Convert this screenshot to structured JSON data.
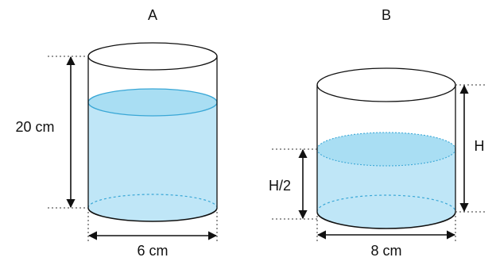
{
  "colors": {
    "water": "#bfe6f7",
    "water_surface": "#a9def3",
    "water_edge": "#3aa7d6",
    "outline": "#111111",
    "guide": "#333333"
  },
  "container_a": {
    "label": "A",
    "height_label": "20 cm",
    "diameter_label": "6 cm"
  },
  "container_b": {
    "label": "B",
    "height_label": "H",
    "water_height_label": "H/2",
    "diameter_label": "8 cm"
  }
}
